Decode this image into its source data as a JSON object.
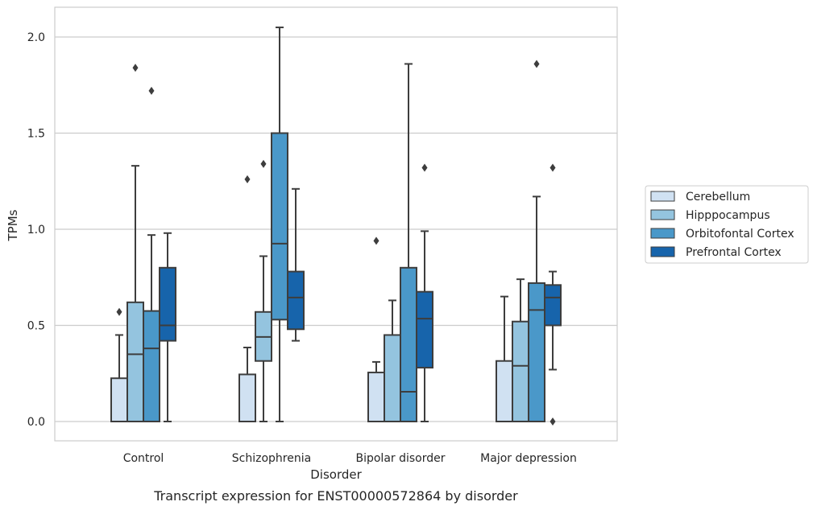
{
  "caption": "Transcript expression for ENST00000572864 by disorder",
  "chart_data": {
    "type": "box",
    "xlabel": "Disorder",
    "ylabel": "TPMs",
    "ylim": [
      -0.1,
      2.16
    ],
    "yticks": [
      "0.0",
      "0.5",
      "1.0",
      "1.5",
      "2.0"
    ],
    "grid": "horizontal",
    "legend_position": "right",
    "categories": [
      "Control",
      "Schizophrenia",
      "Bipolar disorder",
      "Major depression"
    ],
    "series": [
      {
        "name": "Cerebellum",
        "color": "#d0e1f2",
        "boxes": [
          {
            "min": 0.0,
            "q1": 0.0,
            "median": 0.0,
            "q3": 0.225,
            "max": 0.45,
            "outliers": [
              0.57
            ]
          },
          {
            "min": 0.0,
            "q1": 0.0,
            "median": 0.0,
            "q3": 0.245,
            "max": 0.385,
            "outliers": [
              1.26
            ]
          },
          {
            "min": 0.0,
            "q1": 0.0,
            "median": 0.0,
            "q3": 0.255,
            "max": 0.31,
            "outliers": [
              0.94
            ]
          },
          {
            "min": 0.0,
            "q1": 0.0,
            "median": 0.0,
            "q3": 0.315,
            "max": 0.65,
            "outliers": []
          }
        ]
      },
      {
        "name": "Hipppocampus",
        "color": "#94c4df",
        "boxes": [
          {
            "min": 0.0,
            "q1": 0.0,
            "median": 0.35,
            "q3": 0.62,
            "max": 1.33,
            "outliers": [
              1.84
            ]
          },
          {
            "min": 0.0,
            "q1": 0.315,
            "median": 0.44,
            "q3": 0.57,
            "max": 0.86,
            "outliers": [
              1.34
            ]
          },
          {
            "min": 0.0,
            "q1": 0.0,
            "median": 0.0,
            "q3": 0.45,
            "max": 0.63,
            "outliers": []
          },
          {
            "min": 0.0,
            "q1": 0.0,
            "median": 0.29,
            "q3": 0.52,
            "max": 0.74,
            "outliers": []
          }
        ]
      },
      {
        "name": "Orbitofontal Cortex",
        "color": "#4a98c9",
        "boxes": [
          {
            "min": 0.0,
            "q1": 0.0,
            "median": 0.38,
            "q3": 0.575,
            "max": 0.97,
            "outliers": [
              1.72
            ]
          },
          {
            "min": 0.0,
            "q1": 0.53,
            "median": 0.925,
            "q3": 1.5,
            "max": 2.05,
            "outliers": []
          },
          {
            "min": 0.0,
            "q1": 0.0,
            "median": 0.155,
            "q3": 0.8,
            "max": 1.86,
            "outliers": []
          },
          {
            "min": 0.0,
            "q1": 0.0,
            "median": 0.58,
            "q3": 0.72,
            "max": 1.17,
            "outliers": [
              1.86
            ]
          }
        ]
      },
      {
        "name": "Prefrontal Cortex",
        "color": "#1764ab",
        "boxes": [
          {
            "min": 0.0,
            "q1": 0.42,
            "median": 0.5,
            "q3": 0.8,
            "max": 0.98,
            "outliers": []
          },
          {
            "min": 0.42,
            "q1": 0.48,
            "median": 0.645,
            "q3": 0.78,
            "max": 1.21,
            "outliers": []
          },
          {
            "min": 0.0,
            "q1": 0.28,
            "median": 0.535,
            "q3": 0.675,
            "max": 0.99,
            "outliers": [
              1.32
            ]
          },
          {
            "min": 0.27,
            "q1": 0.5,
            "median": 0.645,
            "q3": 0.71,
            "max": 0.78,
            "outliers": [
              0.0,
              1.32
            ]
          }
        ]
      }
    ]
  }
}
